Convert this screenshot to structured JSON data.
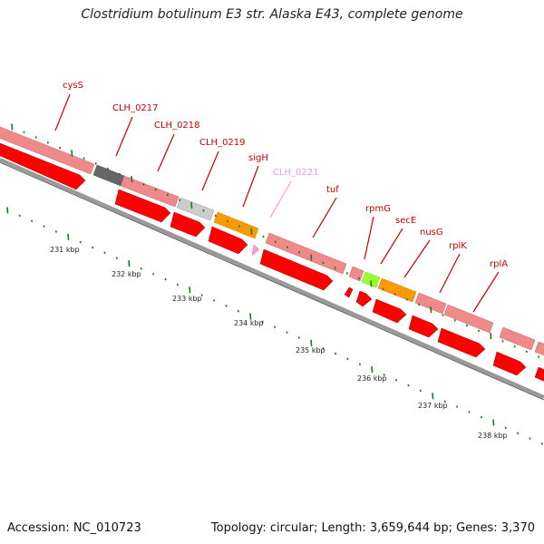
{
  "title": "Clostridium botulinum E3 str. Alaska E43, complete genome",
  "footer": {
    "accession": "Accession: NC_010723",
    "topology": "Topology: circular; Length: 3,659,644 bp; Genes: 3,370"
  },
  "colors": {
    "gene_pink": "#f08a8a",
    "cds_red": "#ff0000",
    "label_red": "#cc0000",
    "label_pink": "#ff99cc",
    "backbone": "#999999",
    "tick_green": "#1a7a1a",
    "pseudo_dark": "#666666",
    "pseudo_light": "#cccccc",
    "orange": "#ff9900",
    "lime": "#99ff33"
  },
  "gene_labels": [
    {
      "name": "cysS"
    },
    {
      "name": "CLH_0217"
    },
    {
      "name": "CLH_0218"
    },
    {
      "name": "CLH_0219"
    },
    {
      "name": "sigH"
    },
    {
      "name": "CLH_0221"
    },
    {
      "name": "tuf"
    },
    {
      "name": "rpmG"
    },
    {
      "name": "secE"
    },
    {
      "name": "nusG"
    },
    {
      "name": "rplK"
    },
    {
      "name": "rplA"
    }
  ],
  "kbp_labels": [
    "231 kbp",
    "232 kbp",
    "233 kbp",
    "234 kbp",
    "235 kbp",
    "236 kbp",
    "237 kbp",
    "238 kbp"
  ]
}
